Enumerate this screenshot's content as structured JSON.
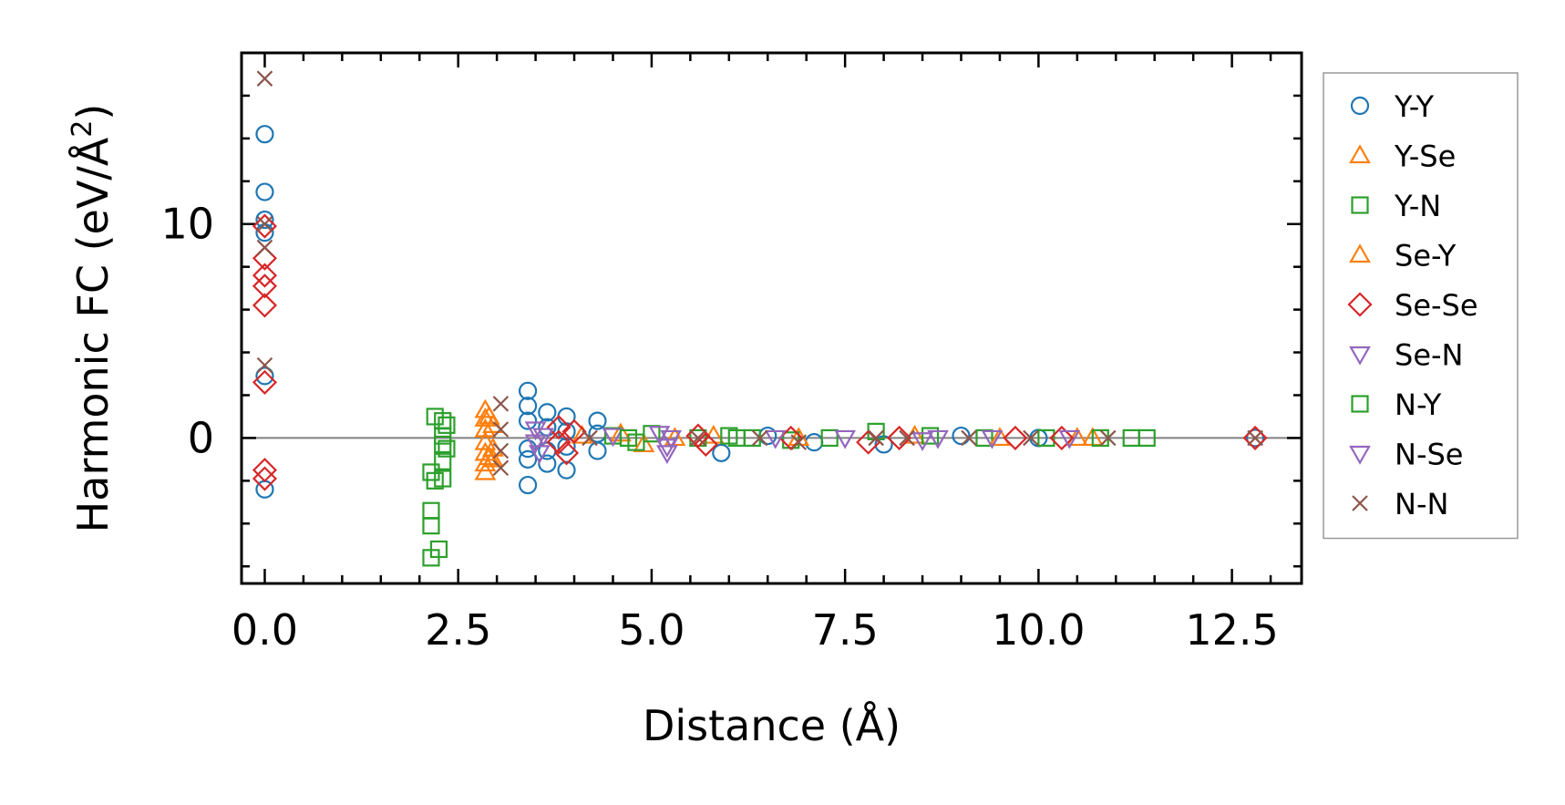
{
  "chart_data": {
    "type": "scatter",
    "title": "",
    "xlabel": "Distance (Å)",
    "ylabel_main": "Harmonic FC (eV/Å",
    "ylabel_sup": "2",
    "ylabel_close": ")",
    "xlim": [
      -0.3,
      13.4
    ],
    "ylim": [
      -6.8,
      18.0
    ],
    "xticks": [
      0.0,
      2.5,
      5.0,
      7.5,
      10.0,
      12.5
    ],
    "xtick_labels": [
      "0.0",
      "2.5",
      "5.0",
      "7.5",
      "10.0",
      "12.5"
    ],
    "yticks": [
      0,
      10
    ],
    "ytick_labels": [
      "0",
      "10"
    ],
    "zero_line": true,
    "legend_position": "outside-right",
    "series": [
      {
        "name": "Y-Y",
        "color": "#1f77b4",
        "marker": "circle",
        "points": [
          [
            0.0,
            14.2
          ],
          [
            0.0,
            11.5
          ],
          [
            0.0,
            10.2
          ],
          [
            0.0,
            9.6
          ],
          [
            0.0,
            2.9
          ],
          [
            0.0,
            -2.4
          ],
          [
            3.4,
            2.2
          ],
          [
            3.4,
            1.5
          ],
          [
            3.4,
            0.8
          ],
          [
            3.4,
            -0.5
          ],
          [
            3.4,
            -1.0
          ],
          [
            3.4,
            -2.2
          ],
          [
            3.65,
            1.2
          ],
          [
            3.65,
            0.5
          ],
          [
            3.65,
            -0.6
          ],
          [
            3.65,
            -1.2
          ],
          [
            3.9,
            1.0
          ],
          [
            3.9,
            0.3
          ],
          [
            3.9,
            -0.4
          ],
          [
            3.9,
            -1.5
          ],
          [
            4.3,
            0.8
          ],
          [
            4.3,
            0.2
          ],
          [
            4.3,
            -0.6
          ],
          [
            5.9,
            -0.7
          ],
          [
            6.5,
            0.1
          ],
          [
            7.1,
            -0.2
          ],
          [
            8.0,
            -0.3
          ],
          [
            9.0,
            0.1
          ],
          [
            10.0,
            0.0
          ],
          [
            12.8,
            0.0
          ]
        ]
      },
      {
        "name": "Y-Se",
        "color": "#ff7f0e",
        "marker": "triangle-up",
        "points": [
          [
            2.85,
            1.3
          ],
          [
            2.85,
            0.9
          ],
          [
            2.85,
            0.4
          ],
          [
            2.85,
            -0.2
          ],
          [
            2.85,
            -0.7
          ],
          [
            2.85,
            -1.2
          ],
          [
            2.85,
            -1.6
          ],
          [
            2.95,
            0.6
          ],
          [
            2.95,
            -0.5
          ],
          [
            2.95,
            -1.0
          ],
          [
            4.6,
            0.2
          ],
          [
            4.9,
            -0.3
          ],
          [
            5.8,
            0.1
          ],
          [
            6.9,
            0.0
          ],
          [
            8.4,
            0.1
          ],
          [
            10.5,
            0.0
          ],
          [
            10.7,
            0.0
          ]
        ]
      },
      {
        "name": "Y-N",
        "color": "#2ca02c",
        "marker": "square",
        "points": [
          [
            2.15,
            -1.6
          ],
          [
            2.15,
            -3.4
          ],
          [
            2.15,
            -4.1
          ],
          [
            2.15,
            -5.6
          ],
          [
            2.25,
            -5.2
          ],
          [
            2.2,
            1.0
          ],
          [
            2.3,
            0.8
          ],
          [
            2.3,
            0.1
          ],
          [
            2.3,
            -0.3
          ],
          [
            2.3,
            -1.1
          ],
          [
            2.3,
            -1.9
          ],
          [
            2.2,
            -2.0
          ],
          [
            4.5,
            0.1
          ],
          [
            4.8,
            -0.2
          ],
          [
            5.0,
            0.2
          ],
          [
            5.6,
            0.0
          ],
          [
            6.0,
            0.1
          ],
          [
            6.3,
            0.0
          ],
          [
            6.8,
            -0.1
          ],
          [
            7.3,
            0.0
          ],
          [
            7.9,
            0.3
          ],
          [
            8.6,
            0.1
          ],
          [
            9.3,
            0.0
          ],
          [
            10.1,
            0.0
          ],
          [
            10.8,
            0.0
          ],
          [
            11.2,
            0.0
          ],
          [
            11.4,
            0.0
          ]
        ]
      },
      {
        "name": "Se-Y",
        "color": "#ff7f0e",
        "marker": "triangle-up",
        "points": [
          [
            2.9,
            1.0
          ],
          [
            2.9,
            -0.9
          ],
          [
            4.1,
            0.1
          ],
          [
            5.3,
            0.0
          ],
          [
            9.5,
            0.0
          ]
        ]
      },
      {
        "name": "Se-Se",
        "color": "#d62728",
        "marker": "diamond",
        "points": [
          [
            0.0,
            9.9
          ],
          [
            0.0,
            8.4
          ],
          [
            0.0,
            7.6
          ],
          [
            0.0,
            7.1
          ],
          [
            0.0,
            6.2
          ],
          [
            0.0,
            2.6
          ],
          [
            0.0,
            -1.5
          ],
          [
            0.0,
            -1.9
          ],
          [
            3.8,
            0.5
          ],
          [
            3.8,
            -0.2
          ],
          [
            3.9,
            -0.7
          ],
          [
            4.0,
            0.3
          ],
          [
            5.6,
            0.1
          ],
          [
            5.7,
            -0.3
          ],
          [
            6.8,
            0.0
          ],
          [
            7.8,
            -0.2
          ],
          [
            8.2,
            0.0
          ],
          [
            9.7,
            0.0
          ],
          [
            10.3,
            0.0
          ],
          [
            12.8,
            0.0
          ]
        ]
      },
      {
        "name": "Se-N",
        "color": "#9467bd",
        "marker": "triangle-down",
        "points": [
          [
            3.5,
            0.4
          ],
          [
            3.5,
            -0.2
          ],
          [
            3.55,
            -0.7
          ],
          [
            4.5,
            0.1
          ],
          [
            5.1,
            0.2
          ],
          [
            5.2,
            -0.4
          ],
          [
            5.2,
            -0.7
          ],
          [
            6.6,
            0.0
          ],
          [
            7.5,
            0.0
          ],
          [
            8.5,
            -0.1
          ],
          [
            9.4,
            0.0
          ],
          [
            10.4,
            0.0
          ]
        ]
      },
      {
        "name": "N-Y",
        "color": "#2ca02c",
        "marker": "square",
        "points": [
          [
            2.35,
            0.6
          ],
          [
            2.35,
            -0.5
          ],
          [
            4.7,
            0.0
          ],
          [
            6.1,
            0.0
          ]
        ]
      },
      {
        "name": "N-Se",
        "color": "#9467bd",
        "marker": "triangle-down",
        "points": [
          [
            3.6,
            0.1
          ],
          [
            5.25,
            0.0
          ],
          [
            8.7,
            0.0
          ]
        ]
      },
      {
        "name": "N-N",
        "color": "#8c564b",
        "marker": "x",
        "points": [
          [
            0.0,
            16.8
          ],
          [
            0.0,
            10.0
          ],
          [
            0.0,
            8.9
          ],
          [
            0.0,
            3.4
          ],
          [
            3.05,
            1.6
          ],
          [
            3.05,
            0.4
          ],
          [
            3.05,
            -0.6
          ],
          [
            3.05,
            -1.4
          ],
          [
            4.2,
            0.0
          ],
          [
            5.6,
            0.0
          ],
          [
            6.4,
            0.0
          ],
          [
            6.9,
            -0.2
          ],
          [
            7.9,
            0.0
          ],
          [
            8.3,
            0.0
          ],
          [
            9.1,
            0.0
          ],
          [
            9.9,
            0.0
          ],
          [
            10.9,
            0.0
          ],
          [
            12.8,
            0.0
          ]
        ]
      }
    ]
  }
}
